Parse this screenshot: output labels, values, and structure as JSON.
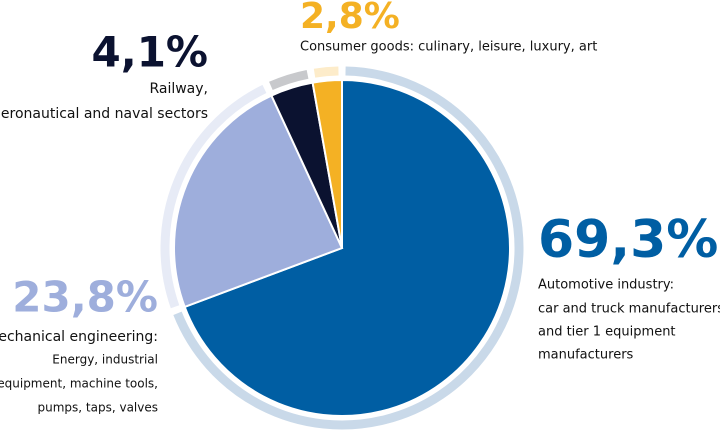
{
  "chart_data": {
    "type": "pie",
    "values": [
      69.3,
      23.8,
      4.1,
      2.8
    ],
    "value_labels": [
      "69,3%",
      "23,8%",
      "4,1%",
      "2,8%"
    ],
    "labels": [
      [
        "Automotive industry:",
        "car and truck manufacturers",
        "and tier 1 equipment",
        "manufacturers"
      ],
      [
        "Mechanical engineering:",
        "Energy, industrial",
        "equipment, machine tools,",
        "pumps, taps, valves"
      ],
      [
        "Railway,",
        "aeronautical and naval sectors"
      ],
      [
        "Consumer goods: culinary, leisure, luxury, art"
      ]
    ],
    "colors": [
      "#005ea3",
      "#9eaedc",
      "#0b1230",
      "#f4b124"
    ],
    "ring_colors": [
      "#c9d9e9",
      "#e7ebf6",
      "#c8c9cc",
      "#fdecca"
    ]
  }
}
